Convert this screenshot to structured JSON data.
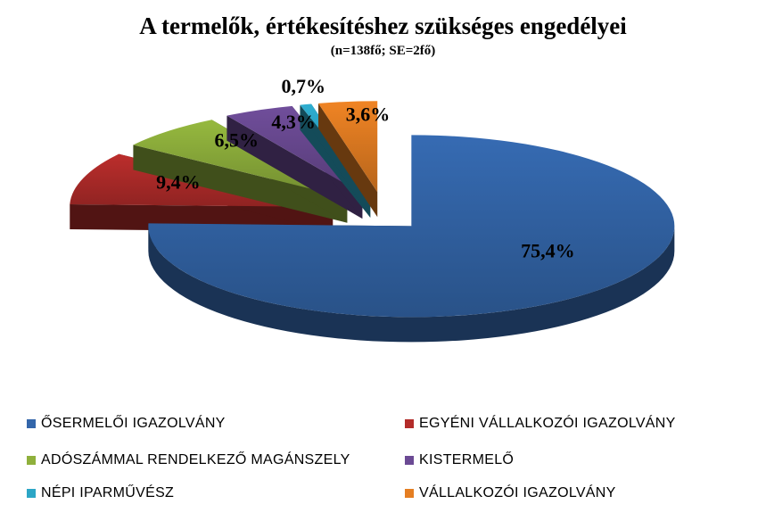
{
  "chart_data": {
    "type": "pie",
    "title": "A termelők, értékesítéshez szükséges engedélyei",
    "subtitle": "(n=138fő; SE=2fő)",
    "slices": [
      {
        "name": "ŐSERMELŐI IGAZOLVÁNY",
        "value": 75.4,
        "label": "75,4%",
        "color": "#3366aa"
      },
      {
        "name": "EGYÉNI VÁLLALKOZÓI IGAZOLVÁNY",
        "value": 9.4,
        "label": "9,4%",
        "color": "#b32c2a"
      },
      {
        "name": "ADÓSZÁMMAL RENDELKEZŐ MAGÁNSZELY",
        "value": 6.5,
        "label": "6,5%",
        "color": "#8fb03c"
      },
      {
        "name": "KISTERMELŐ",
        "value": 4.3,
        "label": "4,3%",
        "color": "#6b4a94"
      },
      {
        "name": "NÉPI IPARMŰVÉSZ",
        "value": 0.7,
        "label": "0,7%",
        "color": "#2ca6c6"
      },
      {
        "name": "VÁLLALKOZÓI IGAZOLVÁNY",
        "value": 3.6,
        "label": "3,6%",
        "color": "#e57e22"
      }
    ],
    "legend_position": "bottom"
  }
}
